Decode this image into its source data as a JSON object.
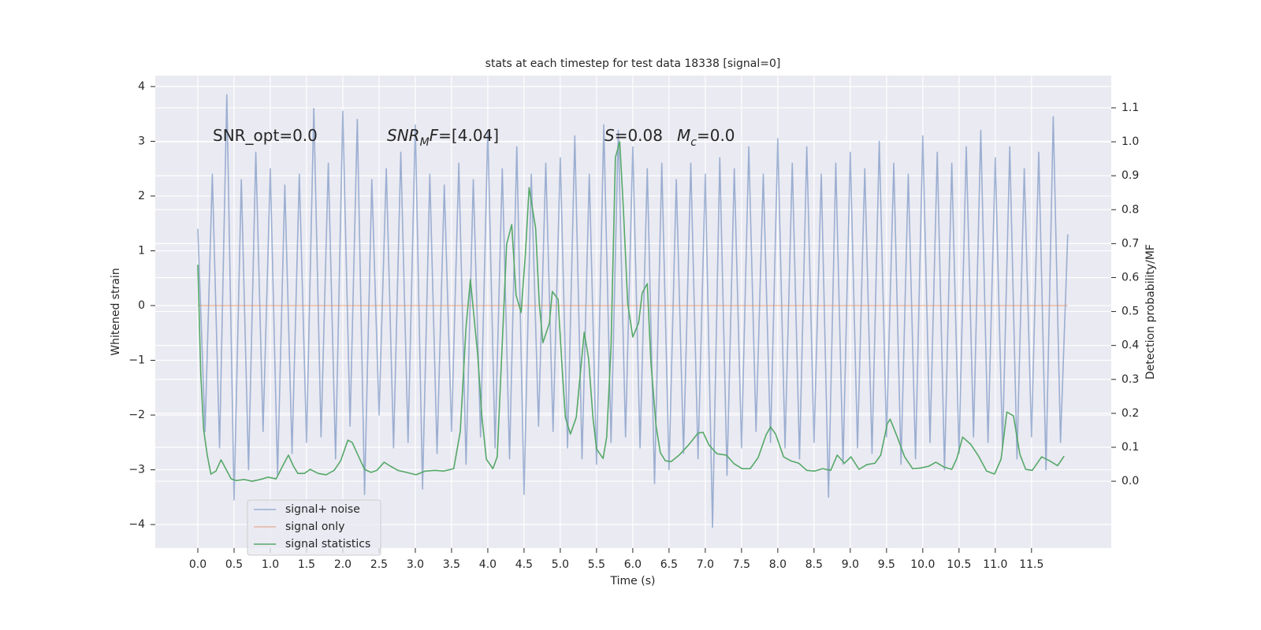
{
  "chart_data": {
    "type": "line",
    "title": "stats at each timestep for test data 18338 [signal=0]",
    "xlabel": "Time (s)",
    "ylabel": "Whitened strain",
    "y2label": "Detection probability/MF",
    "xlim": [
      -0.587,
      12.6
    ],
    "ylim": [
      -4.43,
      4.2
    ],
    "y2lim": [
      -0.197,
      1.195
    ],
    "xticks": [
      {
        "value": 0,
        "label": "0.0"
      },
      0.5,
      {
        "value": 1,
        "label": "1.0"
      },
      1.5,
      {
        "value": 2,
        "label": "2.0"
      },
      2.5,
      {
        "value": 3,
        "label": "3.0"
      },
      3.5,
      {
        "value": 4,
        "label": "4.0"
      },
      4.5,
      {
        "value": 5,
        "label": "5.0"
      },
      5.5,
      {
        "value": 6,
        "label": "6.0"
      },
      6.5,
      {
        "value": 7,
        "label": "7.0"
      },
      7.5,
      {
        "value": 8,
        "label": "8.0"
      },
      8.5,
      {
        "value": 9,
        "label": "9.0"
      },
      9.5,
      {
        "value": 10,
        "label": "10.0"
      },
      10.5,
      {
        "value": 11,
        "label": "11.0"
      },
      11.5
    ],
    "yticks": [
      {
        "value": -4,
        "label": "−4"
      },
      {
        "value": -3,
        "label": "−3"
      },
      {
        "value": -2,
        "label": "−2"
      },
      {
        "value": -1,
        "label": "−1"
      },
      0,
      1,
      2,
      3,
      4
    ],
    "y2ticks": [
      {
        "value": 0,
        "label": "0.0"
      },
      0.1,
      0.2,
      0.3,
      0.4,
      0.5,
      0.6,
      0.7,
      0.8,
      0.9,
      {
        "value": 1,
        "label": "1.0"
      },
      1.1
    ],
    "grid": true,
    "legend": "lower left",
    "annotations": [
      {
        "parts": [
          {
            "text": "SNR_opt=0.0"
          }
        ]
      },
      {
        "parts": [
          {
            "text": "SNR",
            "italic": true
          },
          {
            "text": "M",
            "italic": true,
            "sub": true
          },
          {
            "text": "F",
            "italic": true
          },
          {
            "text": "=[4.04]"
          }
        ]
      },
      {
        "parts": [
          {
            "text": "S",
            "italic": true
          },
          {
            "text": "=0.08"
          }
        ]
      },
      {
        "parts": [
          {
            "text": "M",
            "italic": true
          },
          {
            "text": "c",
            "italic": true,
            "sub": true
          },
          {
            "text": "=0.0"
          }
        ]
      }
    ],
    "series": [
      {
        "name": "signal+ noise",
        "color": "#4c72b0",
        "alpha": 0.5,
        "x": [
          0,
          0.1,
          0.2,
          0.3,
          0.4,
          0.5,
          0.6,
          0.7,
          0.8,
          0.9,
          1,
          1.1,
          1.2,
          1.3,
          1.4,
          1.5,
          1.6,
          1.7,
          1.8,
          1.9,
          2,
          2.1,
          2.2,
          2.3,
          2.4,
          2.5,
          2.6,
          2.7,
          2.8,
          2.9,
          3,
          3.1,
          3.2,
          3.3,
          3.4,
          3.5,
          3.6,
          3.7,
          3.8,
          3.9,
          4,
          4.1,
          4.2,
          4.3,
          4.4,
          4.5,
          4.6,
          4.7,
          4.8,
          4.9,
          5,
          5.1,
          5.2,
          5.3,
          5.4,
          5.5,
          5.6,
          5.7,
          5.8,
          5.9,
          6,
          6.1,
          6.2,
          6.3,
          6.4,
          6.5,
          6.6,
          6.7,
          6.8,
          6.9,
          7,
          7.1,
          7.2,
          7.3,
          7.4,
          7.5,
          7.6,
          7.7,
          7.8,
          7.9,
          8,
          8.1,
          8.2,
          8.3,
          8.4,
          8.5,
          8.6,
          8.7,
          8.8,
          8.9,
          9,
          9.1,
          9.2,
          9.3,
          9.4,
          9.5,
          9.6,
          9.7,
          9.8,
          9.9,
          10,
          10.1,
          10.2,
          10.3,
          10.4,
          10.5,
          10.6,
          10.7,
          10.8,
          10.9,
          11,
          11.1,
          11.2,
          11.3,
          11.4,
          11.5,
          11.6,
          11.7,
          11.8,
          11.9,
          12
        ],
        "values": [
          1.4,
          -2.3,
          2.4,
          -2.6,
          3.85,
          -3.55,
          2.3,
          -3.0,
          2.8,
          -2.3,
          2.5,
          -3.1,
          2.2,
          -2.7,
          2.4,
          -2.5,
          3.6,
          -2.4,
          2.6,
          -2.8,
          3.55,
          -2.2,
          3.4,
          -3.45,
          2.3,
          -2.0,
          2.5,
          -2.6,
          2.8,
          -2.5,
          3.3,
          -3.35,
          2.4,
          -2.7,
          2.2,
          -2.3,
          2.6,
          -2.9,
          2.3,
          -2.4,
          3.2,
          -2.6,
          2.5,
          -2.8,
          2.9,
          -3.45,
          2.4,
          -2.2,
          2.6,
          -2.3,
          2.7,
          -2.6,
          3.1,
          -2.8,
          2.4,
          -2.9,
          3.3,
          -2.5,
          3.2,
          -2.4,
          2.9,
          -2.6,
          2.5,
          -3.25,
          2.6,
          -3.0,
          2.3,
          -2.7,
          2.6,
          -2.8,
          2.4,
          -4.05,
          2.7,
          -3.1,
          2.5,
          -2.6,
          2.9,
          -2.3,
          2.4,
          -2.5,
          3.05,
          -2.6,
          2.6,
          -2.8,
          2.9,
          -2.5,
          2.4,
          -3.5,
          2.6,
          -2.9,
          2.8,
          -2.6,
          2.5,
          -2.7,
          3.0,
          -2.4,
          2.6,
          -2.9,
          2.4,
          -2.8,
          3.1,
          -2.5,
          2.8,
          -3.0,
          2.6,
          -2.7,
          2.9,
          -2.4,
          3.2,
          -2.5,
          2.7,
          -2.6,
          2.9,
          -2.8,
          2.5,
          -2.4,
          2.8,
          -3.0,
          3.45,
          -2.5,
          1.3
        ]
      },
      {
        "name": "signal only",
        "color": "#dd8452",
        "alpha": 0.5,
        "x": [
          0,
          12
        ],
        "values": [
          0,
          0
        ]
      },
      {
        "name": "signal statistics",
        "color": "#55a868",
        "axis": "y2",
        "x": [
          0,
          0.04,
          0.08,
          0.13,
          0.18,
          0.25,
          0.32,
          0.39,
          0.46,
          0.53,
          0.64,
          0.75,
          0.86,
          0.97,
          1.08,
          1.18,
          1.25,
          1.32,
          1.38,
          1.47,
          1.55,
          1.66,
          1.77,
          1.88,
          1.97,
          2.07,
          2.13,
          2.22,
          2.3,
          2.39,
          2.47,
          2.57,
          2.66,
          2.76,
          2.88,
          3.01,
          3.14,
          3.27,
          3.39,
          3.53,
          3.62,
          3.7,
          3.76,
          3.86,
          3.92,
          3.98,
          4.07,
          4.13,
          4.26,
          4.33,
          4.39,
          4.46,
          4.52,
          4.57,
          4.66,
          4.71,
          4.76,
          4.85,
          4.89,
          4.97,
          5.02,
          5.07,
          5.14,
          5.22,
          5.33,
          5.39,
          5.45,
          5.5,
          5.59,
          5.64,
          5.7,
          5.76,
          5.82,
          5.87,
          5.93,
          6.0,
          6.08,
          6.13,
          6.2,
          6.25,
          6.32,
          6.38,
          6.45,
          6.53,
          6.64,
          6.77,
          6.9,
          6.97,
          7.05,
          7.16,
          7.29,
          7.4,
          7.51,
          7.62,
          7.73,
          7.84,
          7.9,
          7.97,
          8.08,
          8.18,
          8.29,
          8.4,
          8.51,
          8.62,
          8.73,
          8.82,
          8.92,
          9.01,
          9.12,
          9.23,
          9.34,
          9.42,
          9.51,
          9.55,
          9.64,
          9.75,
          9.86,
          9.97,
          10.08,
          10.18,
          10.29,
          10.4,
          10.47,
          10.55,
          10.66,
          10.77,
          10.88,
          10.99,
          11.08,
          11.16,
          11.25,
          11.34,
          11.42,
          11.51,
          11.64,
          11.75,
          11.86,
          11.95
        ],
        "values": [
          0.638,
          0.32,
          0.153,
          0.077,
          0.021,
          0.03,
          0.063,
          0.035,
          0.007,
          0.002,
          0.005,
          0,
          0.005,
          0.012,
          0.007,
          0.049,
          0.077,
          0.044,
          0.023,
          0.023,
          0.035,
          0.023,
          0.019,
          0.032,
          0.06,
          0.121,
          0.114,
          0.072,
          0.035,
          0.026,
          0.032,
          0.056,
          0.044,
          0.032,
          0.026,
          0.019,
          0.03,
          0.032,
          0.03,
          0.037,
          0.146,
          0.455,
          0.594,
          0.374,
          0.188,
          0.065,
          0.037,
          0.072,
          0.698,
          0.756,
          0.548,
          0.497,
          0.675,
          0.865,
          0.745,
          0.524,
          0.408,
          0.466,
          0.559,
          0.536,
          0.35,
          0.188,
          0.139,
          0.188,
          0.439,
          0.362,
          0.188,
          0.095,
          0.067,
          0.13,
          0.397,
          0.954,
          1.0,
          0.803,
          0.524,
          0.425,
          0.466,
          0.555,
          0.582,
          0.35,
          0.165,
          0.084,
          0.06,
          0.058,
          0.077,
          0.107,
          0.142,
          0.144,
          0.107,
          0.081,
          0.077,
          0.051,
          0.037,
          0.037,
          0.07,
          0.137,
          0.16,
          0.139,
          0.072,
          0.06,
          0.053,
          0.032,
          0.03,
          0.037,
          0.032,
          0.077,
          0.053,
          0.072,
          0.035,
          0.049,
          0.053,
          0.077,
          0.169,
          0.183,
          0.135,
          0.072,
          0.037,
          0.039,
          0.044,
          0.056,
          0.042,
          0.035,
          0.067,
          0.13,
          0.109,
          0.074,
          0.03,
          0.021,
          0.065,
          0.204,
          0.193,
          0.079,
          0.035,
          0.032,
          0.072,
          0.06,
          0.046,
          0.074
        ]
      }
    ]
  }
}
